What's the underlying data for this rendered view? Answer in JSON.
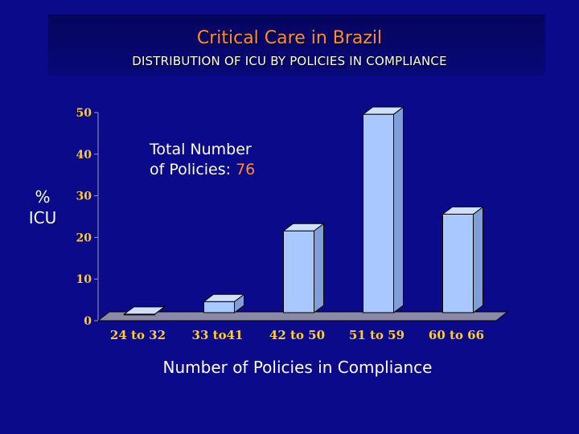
{
  "slide": {
    "title": "Critical Care in Brazil",
    "subtitle": "DISTRIBUTION OF ICU BY POLICIES IN COMPLIANCE",
    "ylabel_line1": "%",
    "ylabel_line2": "ICU",
    "annotation_text": "Total Number",
    "annotation_text2": "of Policies: ",
    "annotation_value": "76",
    "xlabel": "Number of Policies in Compliance"
  },
  "colors": {
    "background": "#0a0a8a",
    "title": "#ff8a3d",
    "bar_front": "#a8c8ff",
    "bar_side": "#7f9fd8",
    "bar_top": "#cfe0ff",
    "floor": "#8a8aa8",
    "tick_text": "#ffcc33",
    "axis": "#9a9ab0"
  },
  "chart_data": {
    "type": "bar",
    "categories": [
      "24 to 32",
      "33 to41",
      "42 to 50",
      "51 to 59",
      "60 to 66"
    ],
    "values": [
      1,
      4,
      21,
      49,
      25
    ],
    "title": "",
    "xlabel": "Number of Policies in Compliance",
    "ylabel": "% ICU",
    "ylim": [
      0,
      50
    ],
    "yticks": [
      0,
      10,
      20,
      30,
      40,
      50
    ],
    "grid": false,
    "legend": "none"
  }
}
